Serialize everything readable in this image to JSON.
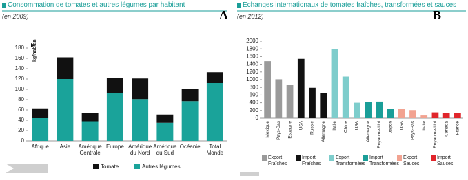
{
  "chart_data": [
    {
      "type": "stacked_bar",
      "title": "Consommation de tomates et autres légumes par habitant",
      "subtitle": "(en 2009)",
      "label": "A",
      "ylabel": "kg/hab/an",
      "categories": [
        "Afrique",
        "Asie",
        "Amérique Centrale",
        "Europe",
        "Amérique du Nord",
        "Amérique du Sud",
        "Océanie",
        "Total Monde"
      ],
      "series": [
        {
          "name": "Tomate",
          "color": "#111111",
          "values": [
            19,
            42,
            16,
            30,
            40,
            16,
            23,
            21
          ]
        },
        {
          "name": "Autres légumes",
          "color": "#1aa39a",
          "values": [
            44,
            120,
            38,
            92,
            81,
            35,
            77,
            112
          ]
        }
      ],
      "ylim": [
        0,
        180
      ],
      "yticks": [
        0,
        20,
        40,
        60,
        80,
        100,
        120,
        140,
        160,
        180
      ]
    },
    {
      "type": "bar",
      "title": "Échanges internationaux de tomates fraîches, transformées et sauces",
      "subtitle": "(en 2012)",
      "label": "B",
      "series": [
        {
          "name": "Export Fraîches",
          "color": "#9a9a9a",
          "categories": [
            "Mexique",
            "Pays-Bas",
            "Espagne"
          ],
          "values": [
            1480,
            1010,
            870
          ]
        },
        {
          "name": "Import Fraîches",
          "color": "#111111",
          "categories": [
            "USA",
            "Russie",
            "Allemagne"
          ],
          "values": [
            1540,
            790,
            660
          ]
        },
        {
          "name": "Export Transformées",
          "color": "#7ecdcc",
          "categories": [
            "Italie",
            "Chine",
            "USA"
          ],
          "values": [
            1800,
            1080,
            400
          ]
        },
        {
          "name": "Import Transformées",
          "color": "#1a9e98",
          "categories": [
            "Allemagne",
            "Royaume-Uni",
            "Japon"
          ],
          "values": [
            420,
            430,
            250
          ]
        },
        {
          "name": "Export Sauces",
          "color": "#f2a391",
          "categories": [
            "USA",
            "Pays-Bas",
            "Italie"
          ],
          "values": [
            240,
            210,
            70
          ]
        },
        {
          "name": "Import Sauces",
          "color": "#e0252b",
          "categories": [
            "Royaume-Uni",
            "Canada",
            "France"
          ],
          "values": [
            150,
            130,
            130
          ]
        }
      ],
      "ylim": [
        0,
        2000
      ],
      "yticks": [
        0,
        200,
        400,
        600,
        800,
        1000,
        1200,
        1400,
        1600,
        1800,
        2000
      ]
    }
  ]
}
